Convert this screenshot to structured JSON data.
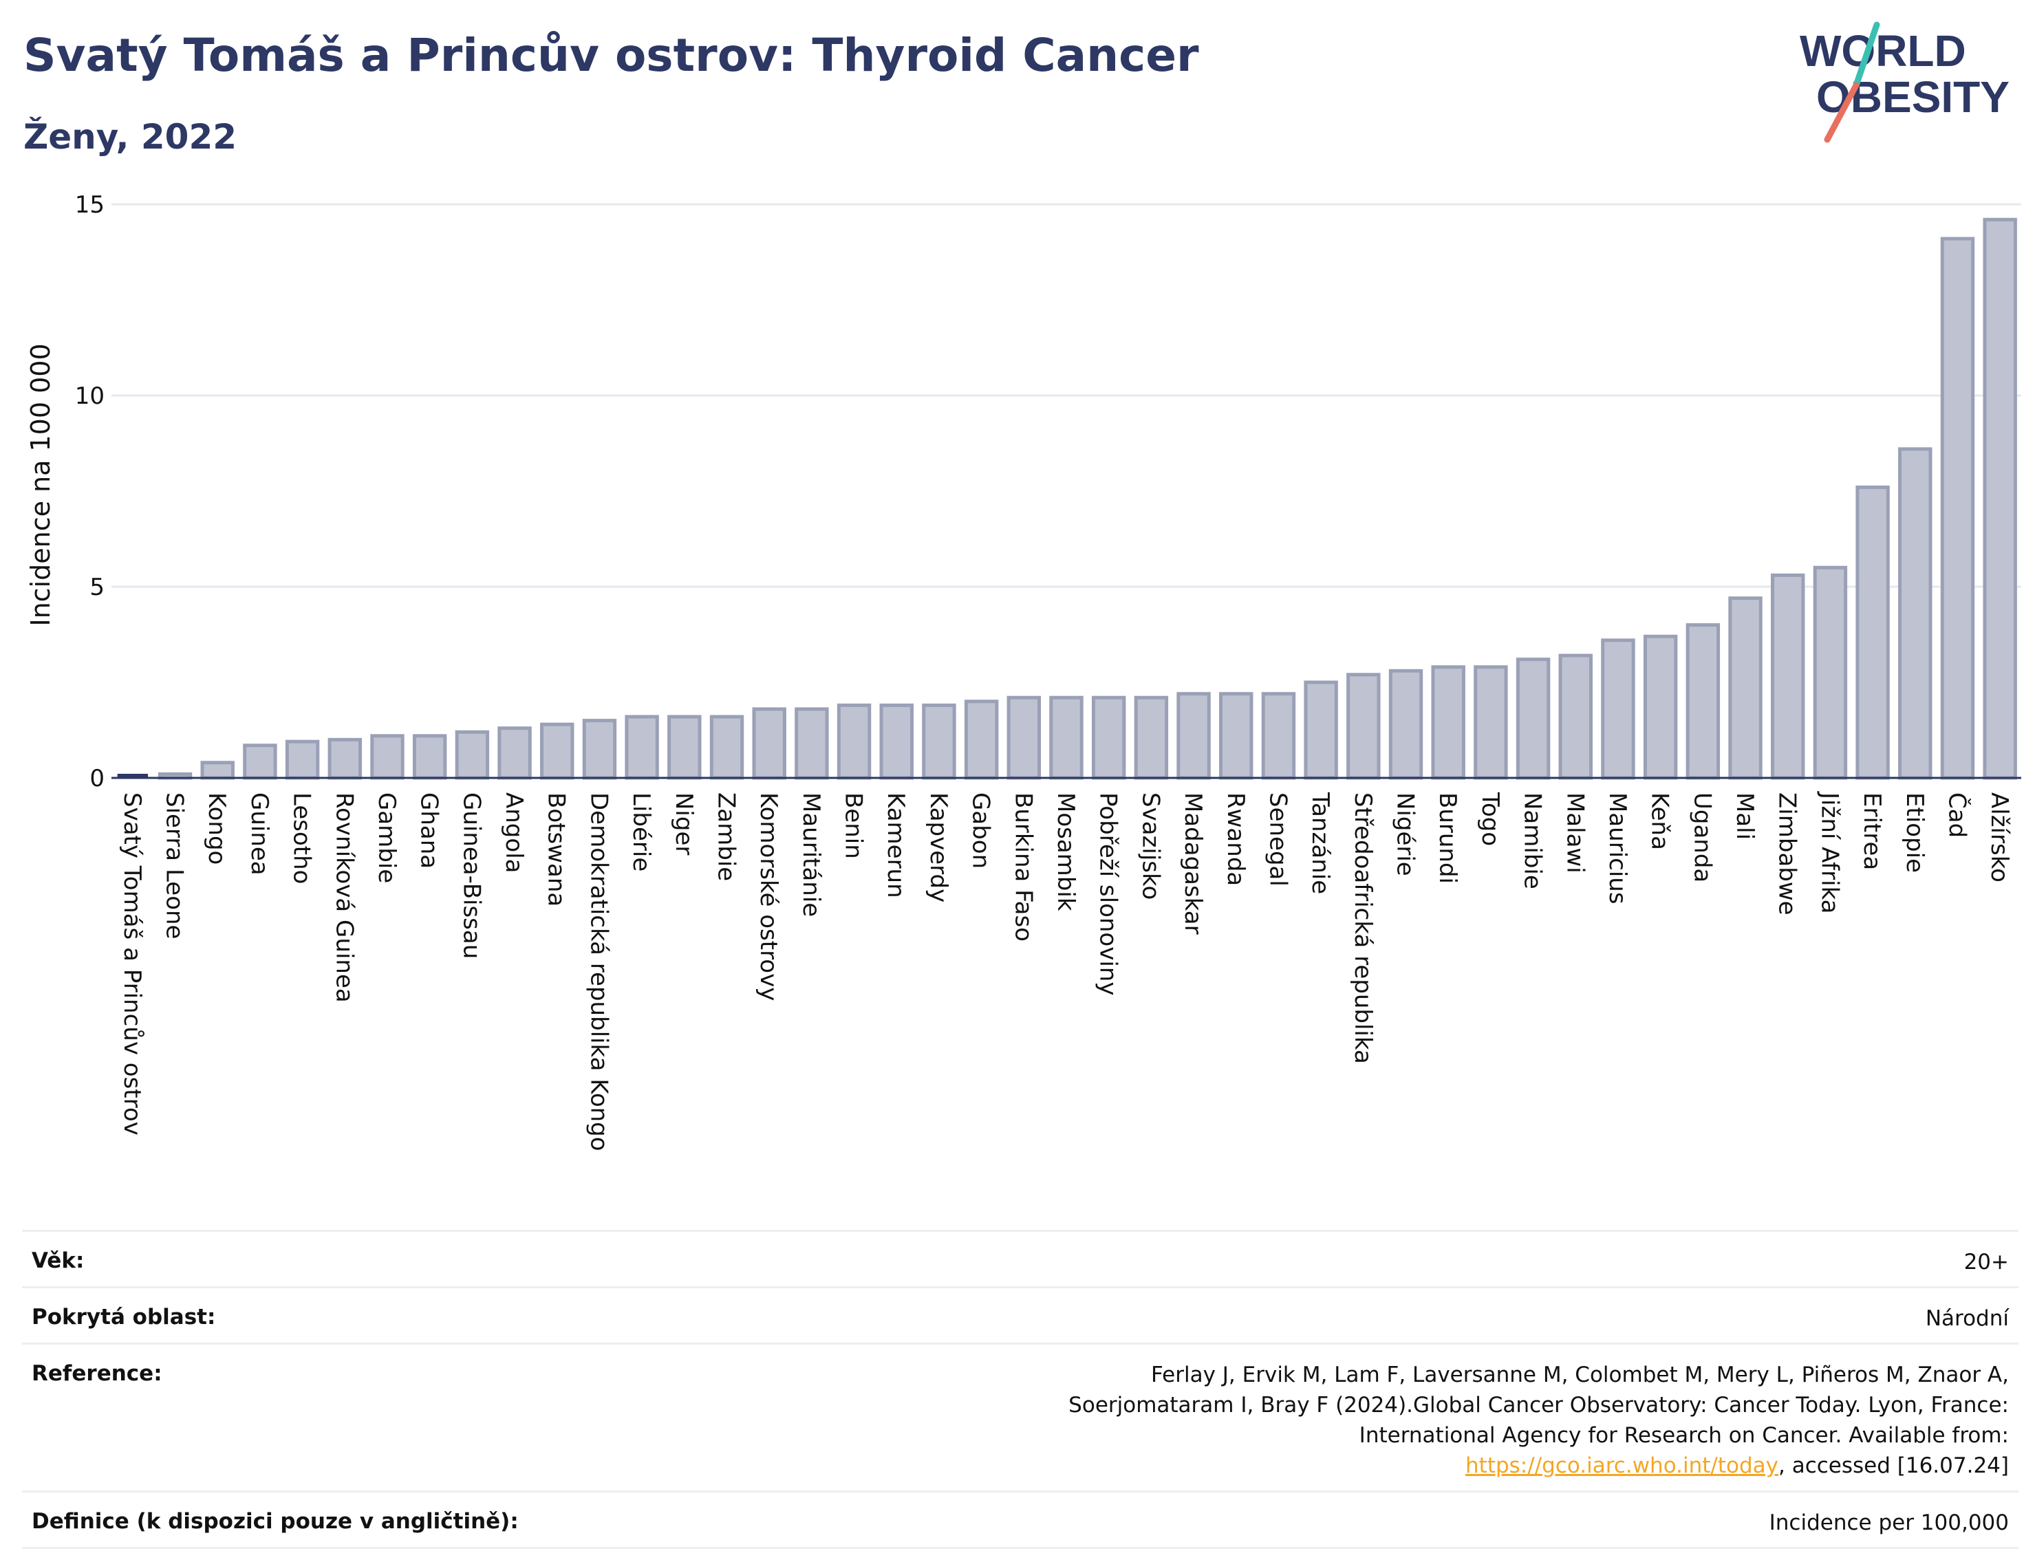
{
  "header": {
    "title": "Svatý Tomáš a Princův ostrov: Thyroid Cancer",
    "subtitle": "Ženy, 2022"
  },
  "logo": {
    "line1": "WORLD",
    "line2": "OBESITY"
  },
  "colors": {
    "title": "#2d3864",
    "bar_fill": "#bfc3d1",
    "bar_stroke": "#9aa0b6",
    "highlight": "#2d3864",
    "grid": "#e6e8ee",
    "logo_teal": "#3bbfb2",
    "logo_coral": "#e8705f"
  },
  "chart_data": {
    "type": "bar",
    "title": "Svatý Tomáš a Princův ostrov: Thyroid Cancer",
    "subtitle": "Ženy, 2022",
    "ylabel": "Incidence na 100 000",
    "xlabel": "",
    "ylim": [
      0,
      15
    ],
    "yticks": [
      0,
      5,
      10,
      15
    ],
    "grid": true,
    "highlight": "Svatý Tomáš a Princův ostrov",
    "categories": [
      "Svatý Tomáš a Princův ostrov",
      "Sierra Leone",
      "Kongo",
      "Guinea",
      "Lesotho",
      "Rovníková Guinea",
      "Gambie",
      "Ghana",
      "Guinea-Bissau",
      "Angola",
      "Botswana",
      "Demokratická republika Kongo",
      "Libérie",
      "Niger",
      "Zambie",
      "Komorské ostrovy",
      "Mauritánie",
      "Benin",
      "Kamerun",
      "Kapverdy",
      "Gabon",
      "Burkina Faso",
      "Mosambik",
      "Pobřeží slonoviny",
      "Svazijsko",
      "Madagaskar",
      "Rwanda",
      "Senegal",
      "Tanzánie",
      "Středoafrická republika",
      "Nigérie",
      "Burundi",
      "Togo",
      "Namibie",
      "Malawi",
      "Mauricius",
      "Keňa",
      "Uganda",
      "Mali",
      "Zimbabwe",
      "Jižní Afrika",
      "Eritrea",
      "Etiopie",
      "Čad",
      "Alžírsko"
    ],
    "values": [
      0.0,
      0.1,
      0.4,
      0.85,
      0.95,
      1.0,
      1.1,
      1.1,
      1.2,
      1.3,
      1.4,
      1.5,
      1.6,
      1.6,
      1.6,
      1.8,
      1.8,
      1.9,
      1.9,
      1.9,
      2.0,
      2.1,
      2.1,
      2.1,
      2.1,
      2.2,
      2.2,
      2.2,
      2.5,
      2.7,
      2.8,
      2.9,
      2.9,
      3.1,
      3.2,
      3.6,
      3.7,
      4.0,
      4.7,
      5.3,
      5.5,
      7.6,
      8.6,
      14.1,
      14.6
    ]
  },
  "info": {
    "age_label": "Věk:",
    "age_value": "20+",
    "coverage_label": "Pokrytá oblast:",
    "coverage_value": "Národní",
    "reference_label": "Reference:",
    "reference_text": "Ferlay J, Ervik M, Lam F, Laversanne M, Colombet M, Mery L, Piñeros M, Znaor A, Soerjomataram I, Bray F (2024).Global Cancer Observatory: Cancer Today. Lyon, France: International Agency for Research on Cancer. Available from:",
    "reference_link": "https://gco.iarc.who.int/today",
    "reference_suffix": ", accessed [16.07.24]",
    "definition_label": "Definice (k dispozici pouze v angličtině):",
    "definition_value": "Incidence per 100,000"
  }
}
